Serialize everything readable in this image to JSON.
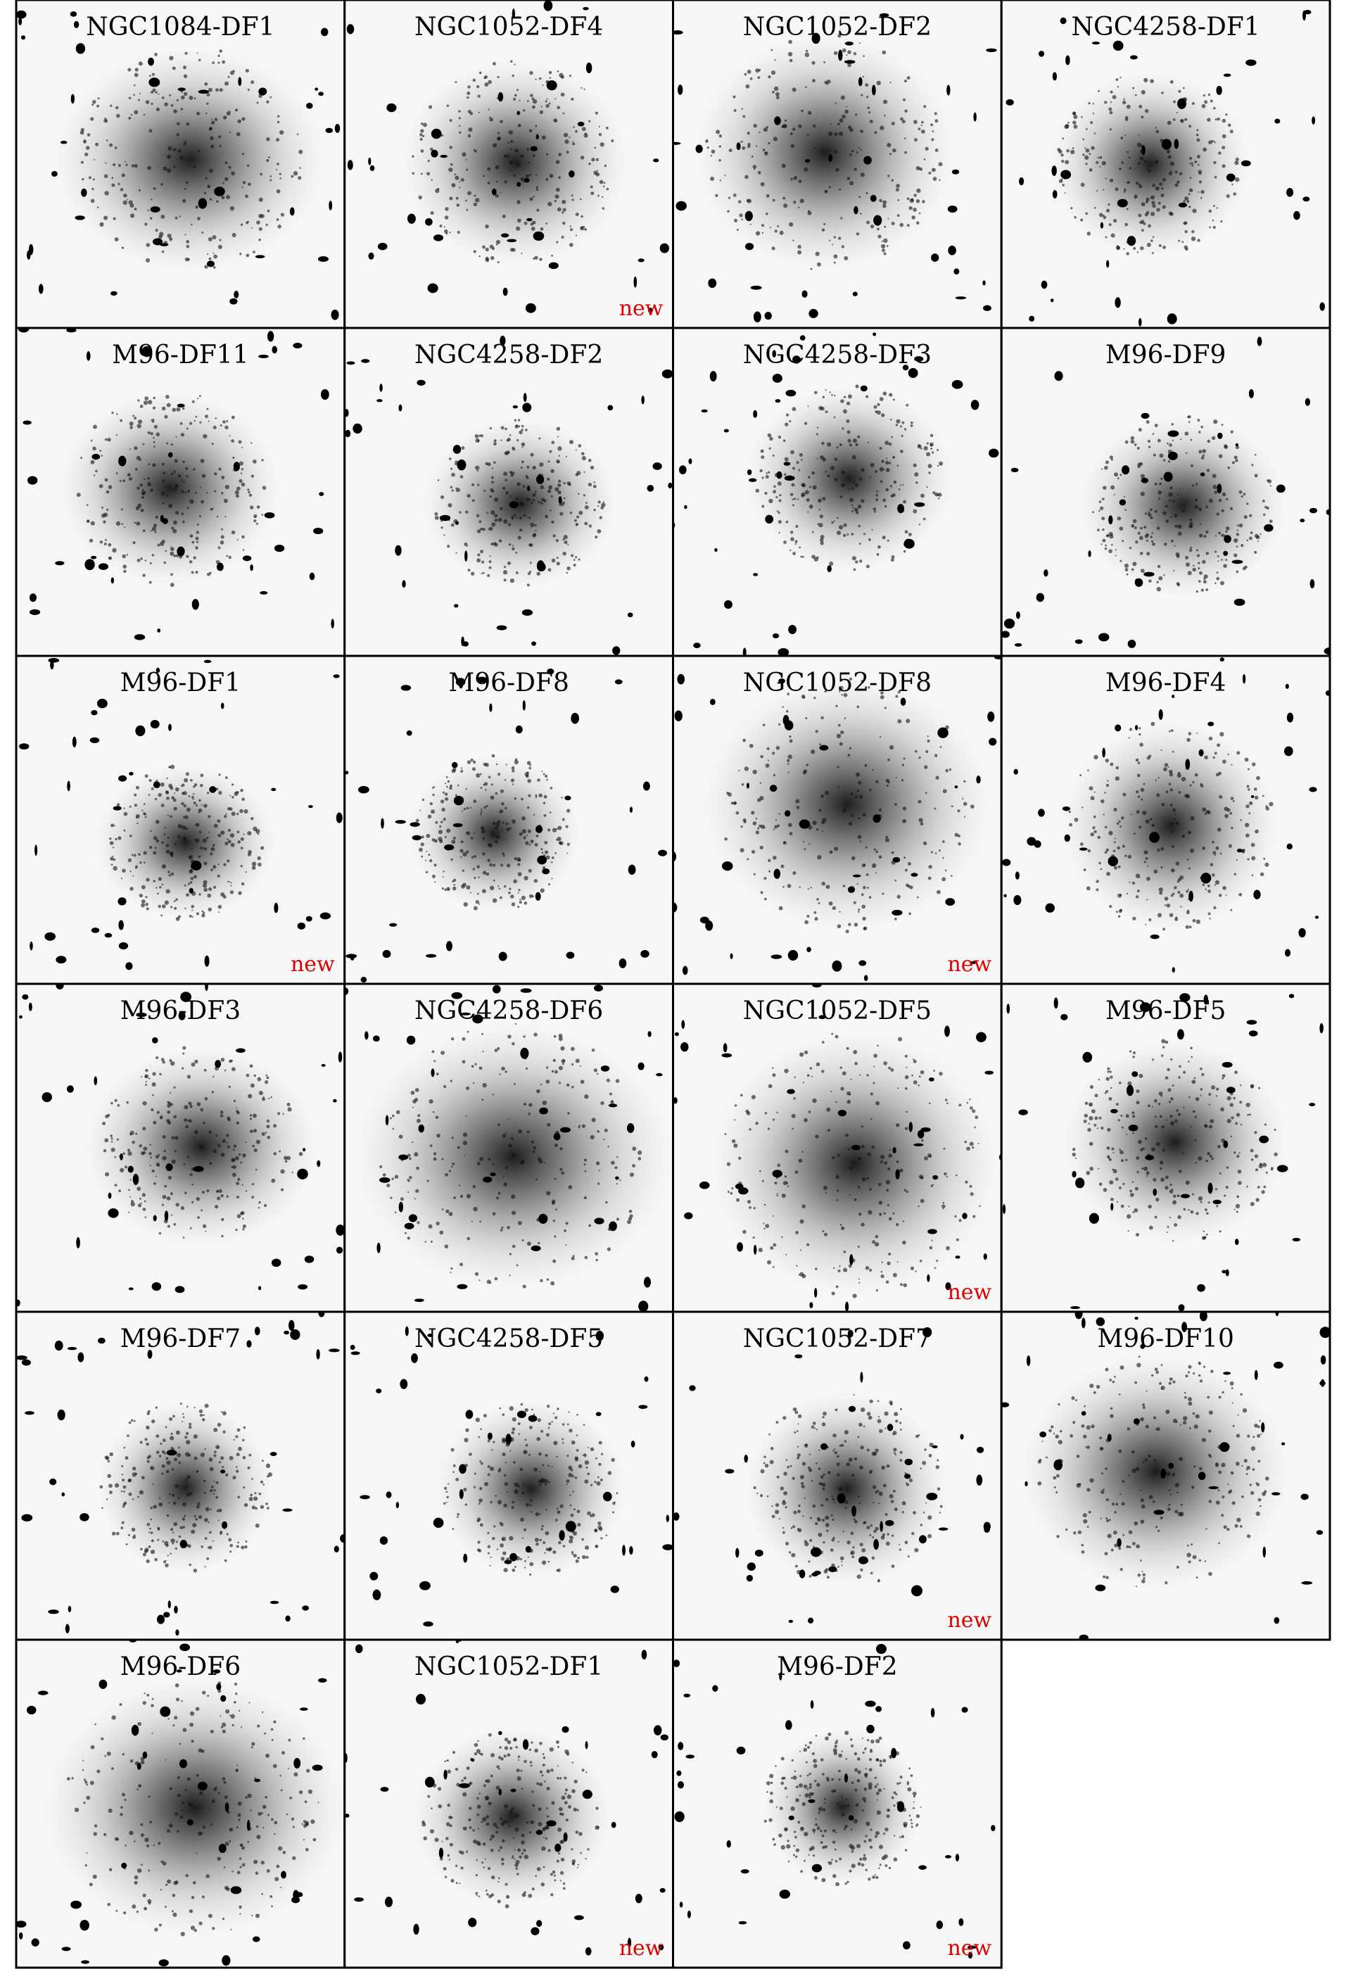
{
  "panels": [
    {
      "label": "NGC1084-DF1"
    },
    {
      "label": "NGC1052-DF4",
      "badge": "new"
    },
    {
      "label": "NGC1052-DF2"
    },
    {
      "label": "NGC4258-DF1"
    },
    {
      "label": "M96-DF11"
    },
    {
      "label": "NGC4258-DF2"
    },
    {
      "label": "NGC4258-DF3"
    },
    {
      "label": "M96-DF9"
    },
    {
      "label": "M96-DF1",
      "badge": "new"
    },
    {
      "label": "M96-DF8"
    },
    {
      "label": "NGC1052-DF8",
      "badge": "new"
    },
    {
      "label": "M96-DF4"
    },
    {
      "label": "M96-DF3"
    },
    {
      "label": "NGC4258-DF6"
    },
    {
      "label": "NGC1052-DF5",
      "badge": "new"
    },
    {
      "label": "M96-DF5"
    },
    {
      "label": "M96-DF7"
    },
    {
      "label": "NGC4258-DF5"
    },
    {
      "label": "NGC1052-DF7",
      "badge": "new"
    },
    {
      "label": "M96-DF10"
    },
    {
      "label": "M96-DF6"
    },
    {
      "label": "NGC1052-DF1",
      "badge": "new"
    },
    {
      "label": "M96-DF2",
      "badge": "new"
    }
  ]
}
